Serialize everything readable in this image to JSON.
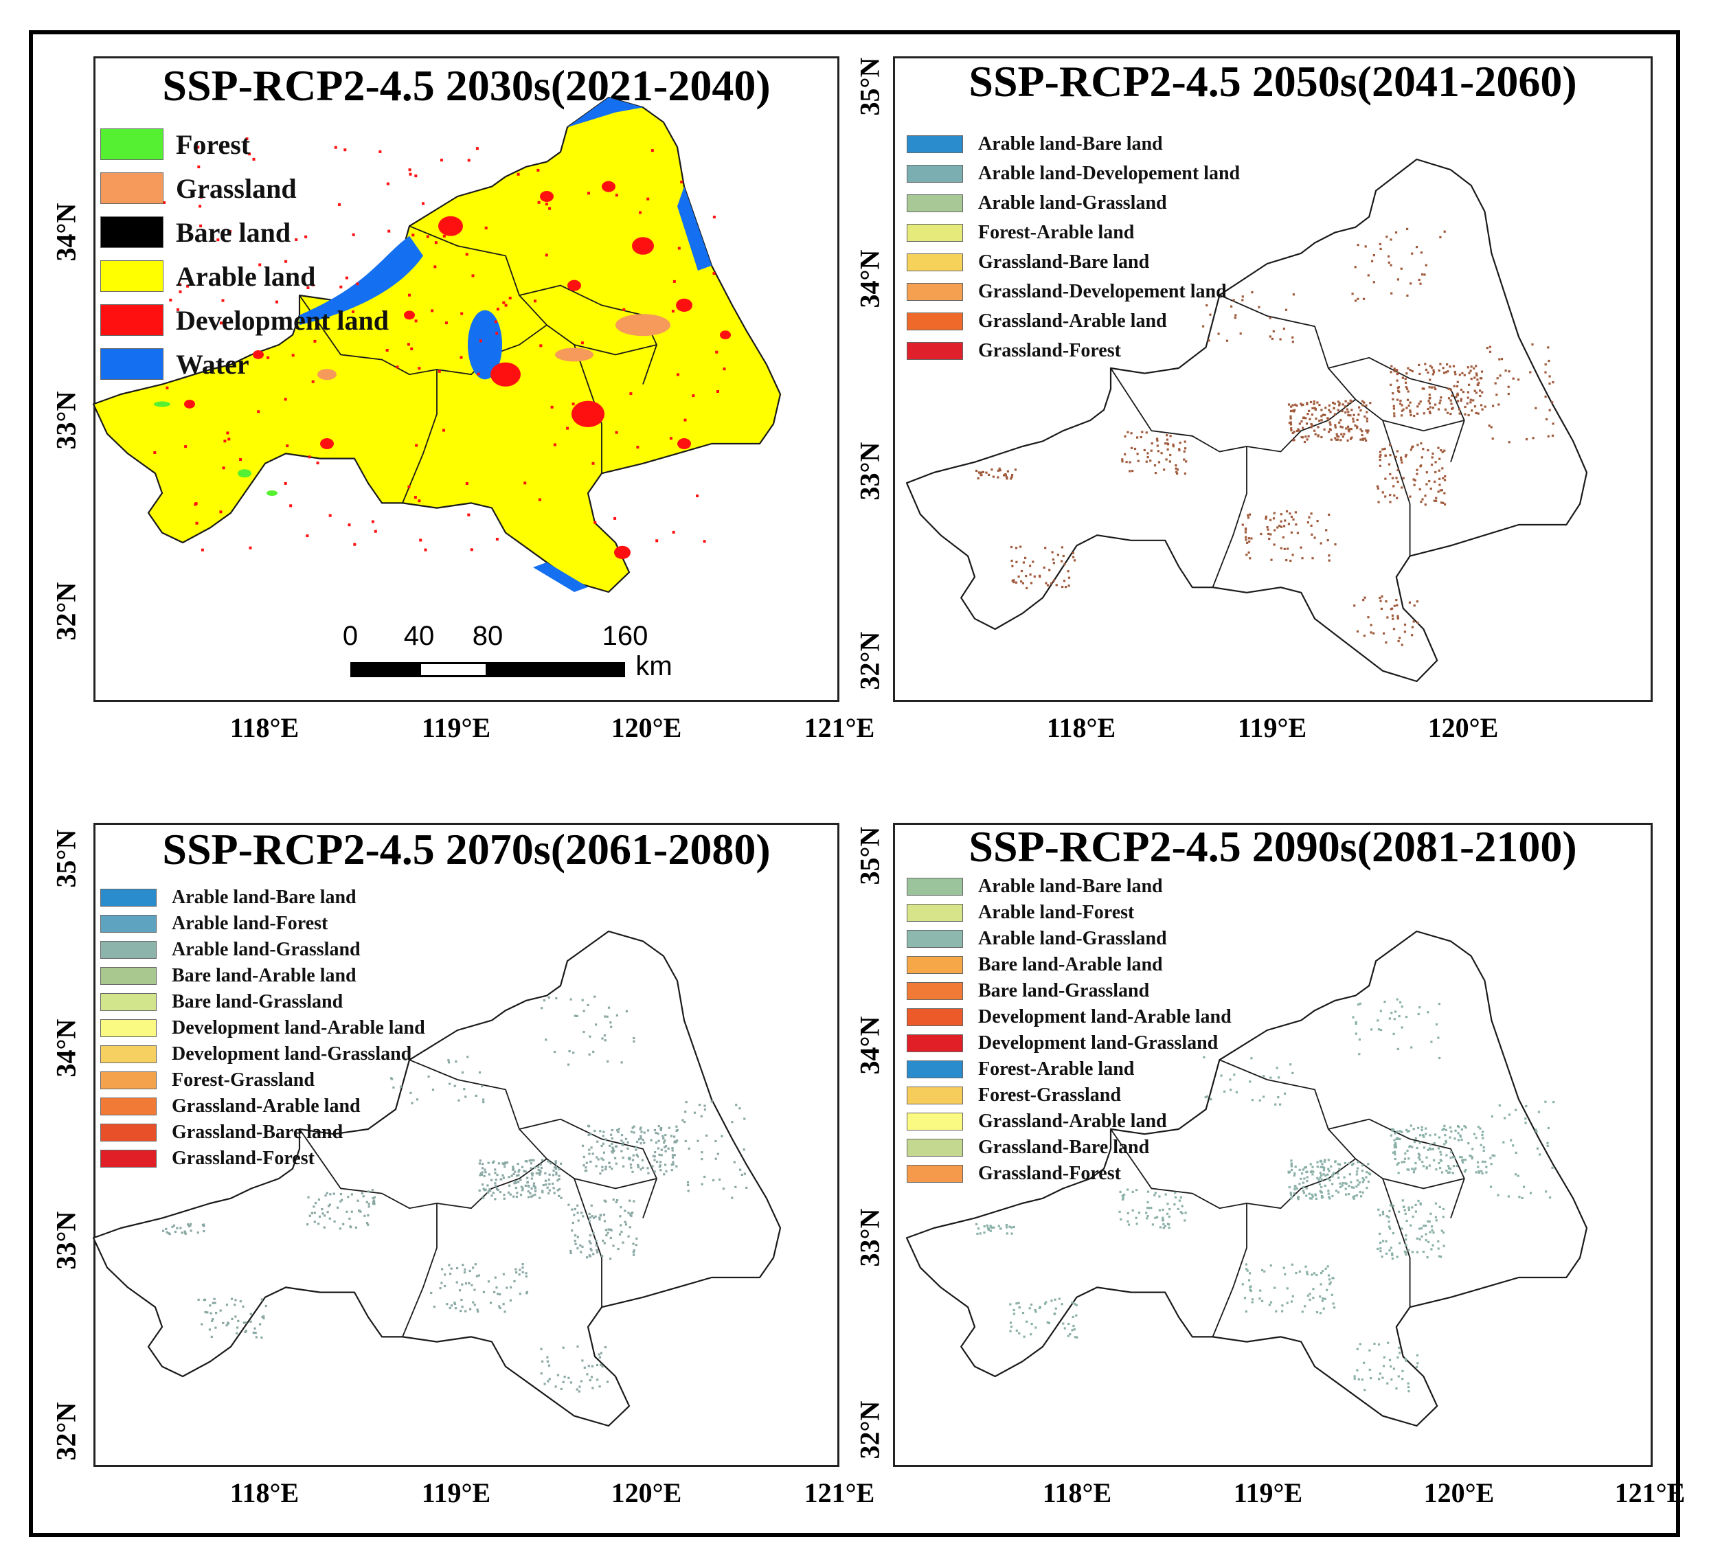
{
  "panels": [
    {
      "title": "SSP-RCP2-4.5 2030s(2021-2040)",
      "legend": [
        {
          "label": "Forest",
          "color": "#55f032"
        },
        {
          "label": "Grassland",
          "color": "#f59a5a"
        },
        {
          "label": "Bare land",
          "color": "#000000"
        },
        {
          "label": "Arable land",
          "color": "#ffff00"
        },
        {
          "label": "Development land",
          "color": "#ff1010"
        },
        {
          "label": "Water",
          "color": "#1470f0"
        }
      ],
      "lat_labels": [
        "34°N",
        "33°N",
        "32°N"
      ],
      "lon_labels": [
        "118°E",
        "119°E",
        "120°E",
        "121°E"
      ],
      "scale_bar": {
        "ticks": [
          "0",
          "40",
          "80",
          "160"
        ],
        "unit": "km"
      }
    },
    {
      "title": "SSP-RCP2-4.5 2050s(2041-2060)",
      "legend": [
        {
          "label": "Arable land-Bare land",
          "color": "#2a8ccc"
        },
        {
          "label": "Arable land-Developement land",
          "color": "#7aaeb0"
        },
        {
          "label": "Arable land-Grassland",
          "color": "#a8c896"
        },
        {
          "label": "Forest-Arable land",
          "color": "#e6ea7a"
        },
        {
          "label": "Grassland-Bare land",
          "color": "#f6d25a"
        },
        {
          "label": "Grassland-Developement land",
          "color": "#f5a050"
        },
        {
          "label": "Grassland-Arable land",
          "color": "#ef6a2a"
        },
        {
          "label": "Grassland-Forest",
          "color": "#e0202a"
        }
      ],
      "lat_labels": [
        "35°N",
        "34°N",
        "33°N",
        "32°N"
      ],
      "lon_labels": [
        "118°E",
        "119°E",
        "120°E"
      ]
    },
    {
      "title": "SSP-RCP2-4.5 2070s(2061-2080)",
      "legend": [
        {
          "label": "Arable land-Bare land",
          "color": "#2a8ccc"
        },
        {
          "label": "Arable land-Forest",
          "color": "#5ea4c0"
        },
        {
          "label": "Arable land-Grassland",
          "color": "#8cb4aa"
        },
        {
          "label": "Bare land-Arable land",
          "color": "#a8c890"
        },
        {
          "label": "Bare land-Grassland",
          "color": "#d2e48c"
        },
        {
          "label": "Development land-Arable land",
          "color": "#fafa82"
        },
        {
          "label": "Development land-Grassland",
          "color": "#f6d060"
        },
        {
          "label": "Forest-Grassland",
          "color": "#f4a24c"
        },
        {
          "label": "Grassland-Arable land",
          "color": "#f07a36"
        },
        {
          "label": "Grassland-Bare land",
          "color": "#e8502a"
        },
        {
          "label": "Grassland-Forest",
          "color": "#e02026"
        }
      ],
      "lat_labels": [
        "35°N",
        "34°N",
        "33°N",
        "32°N"
      ],
      "lon_labels": [
        "118°E",
        "119°E",
        "120°E",
        "121°E"
      ]
    },
    {
      "title": "SSP-RCP2-4.5 2090s(2081-2100)",
      "legend": [
        {
          "label": "Arable land-Bare land",
          "color": "#9cc49c"
        },
        {
          "label": "Arable land-Forest",
          "color": "#d8e48a"
        },
        {
          "label": "Arable land-Grassland",
          "color": "#8cb8ae"
        },
        {
          "label": "Bare land-Arable land",
          "color": "#f6a848"
        },
        {
          "label": "Bare land-Grassland",
          "color": "#f07a36"
        },
        {
          "label": "Development land-Arable land",
          "color": "#ec5a2a"
        },
        {
          "label": "Development land-Grassland",
          "color": "#e02026"
        },
        {
          "label": "Forest-Arable land",
          "color": "#2a8ccc"
        },
        {
          "label": "Forest-Grassland",
          "color": "#f6cc5a"
        },
        {
          "label": "Grassland-Arable land",
          "color": "#fafa82"
        },
        {
          "label": "Grassland-Bare land",
          "color": "#c4d890"
        },
        {
          "label": "Grassland-Forest",
          "color": "#f59a4a"
        }
      ],
      "lat_labels": [
        "35°N",
        "34°N",
        "33°N",
        "32°N"
      ],
      "lon_labels": [
        "118°E",
        "119°E",
        "120°E",
        "121°E"
      ]
    }
  ],
  "colors": {
    "outline": "#1a1a1a",
    "change_2050": "#a05a3c",
    "change_2070": "#8aa8a4",
    "change_2090": "#8ab0a8"
  }
}
